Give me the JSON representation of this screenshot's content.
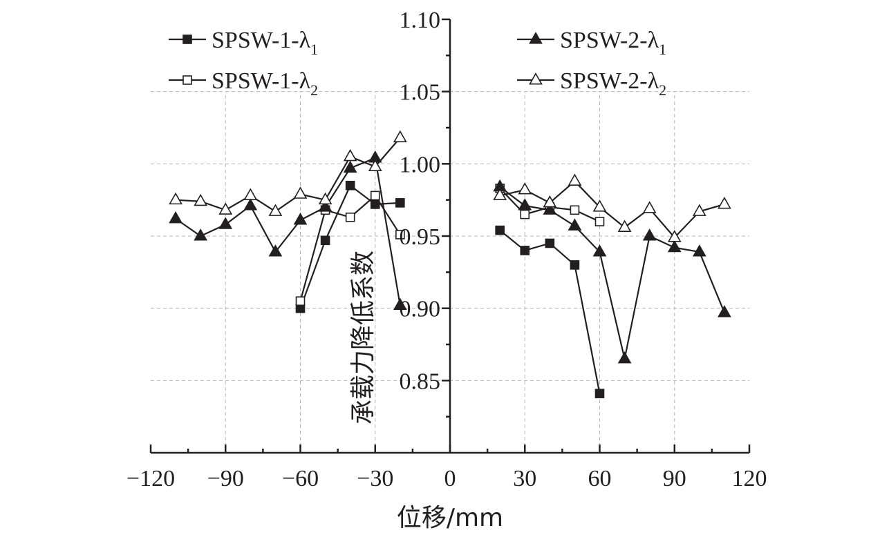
{
  "chart_data": {
    "type": "line",
    "xlabel": "位移/mm",
    "ylabel": "承载力降低系数",
    "xlim": [
      -120,
      120
    ],
    "ylim": [
      0.8,
      1.1
    ],
    "x_ticks": [
      -120,
      -90,
      -60,
      -30,
      0,
      30,
      60,
      90,
      120
    ],
    "x_tick_labels": [
      "−120",
      "−90",
      "−60",
      "−30",
      "0",
      "30",
      "60",
      "90",
      "120"
    ],
    "y_ticks": [
      0.85,
      0.9,
      0.95,
      1.0,
      1.05,
      1.1
    ],
    "y_tick_labels": [
      "0.85",
      "0.90",
      "0.95",
      "1.00",
      "1.05",
      "1.10"
    ],
    "grid": true,
    "legend_left": "top-left",
    "legend_right": "top-right",
    "series": [
      {
        "name": "SPSW-1-λ1",
        "label_main": "SPSW-1-λ",
        "label_sub": "1",
        "marker": "square-filled",
        "color": "#231f20",
        "legend_group": "left",
        "segments": [
          {
            "x": [
              -60,
              -50,
              -40,
              -30,
              -20
            ],
            "y": [
              0.9,
              0.947,
              0.985,
              0.972,
              0.973
            ]
          },
          {
            "x": [
              20,
              30,
              40,
              50,
              60
            ],
            "y": [
              0.954,
              0.94,
              0.945,
              0.93,
              0.841
            ]
          }
        ]
      },
      {
        "name": "SPSW-1-λ2",
        "label_main": "SPSW-1-λ",
        "label_sub": "2",
        "marker": "square-open",
        "color": "#231f20",
        "legend_group": "left",
        "segments": [
          {
            "x": [
              -60,
              -50,
              -40,
              -30,
              -20
            ],
            "y": [
              0.905,
              0.968,
              0.963,
              0.978,
              0.951
            ]
          },
          {
            "x": [
              20,
              30,
              40,
              50,
              60
            ],
            "y": [
              0.983,
              0.965,
              0.97,
              0.968,
              0.96
            ]
          }
        ]
      },
      {
        "name": "SPSW-2-λ1",
        "label_main": "SPSW-2-λ",
        "label_sub": "1",
        "marker": "triangle-filled",
        "color": "#231f20",
        "legend_group": "right",
        "segments": [
          {
            "x": [
              -110,
              -100,
              -90,
              -80,
              -70,
              -60,
              -50,
              -40,
              -30,
              -20
            ],
            "y": [
              0.962,
              0.95,
              0.958,
              0.971,
              0.939,
              0.961,
              0.97,
              0.997,
              1.004,
              0.902
            ]
          },
          {
            "x": [
              20,
              30,
              40,
              50,
              60,
              70,
              80,
              90,
              100,
              110
            ],
            "y": [
              0.984,
              0.971,
              0.968,
              0.957,
              0.939,
              0.865,
              0.95,
              0.942,
              0.939,
              0.897
            ]
          }
        ]
      },
      {
        "name": "SPSW-2-λ2",
        "label_main": "SPSW-2-λ",
        "label_sub": "2",
        "marker": "triangle-open",
        "color": "#231f20",
        "legend_group": "right",
        "segments": [
          {
            "x": [
              -110,
              -100,
              -90,
              -80,
              -70,
              -60,
              -50,
              -40,
              -30,
              -20
            ],
            "y": [
              0.975,
              0.974,
              0.968,
              0.978,
              0.967,
              0.979,
              0.975,
              1.005,
              0.998,
              1.018
            ]
          },
          {
            "x": [
              20,
              30,
              40,
              50,
              60,
              70,
              80,
              90,
              100,
              110
            ],
            "y": [
              0.978,
              0.982,
              0.973,
              0.988,
              0.97,
              0.956,
              0.969,
              0.949,
              0.967,
              0.972
            ]
          }
        ]
      }
    ]
  }
}
